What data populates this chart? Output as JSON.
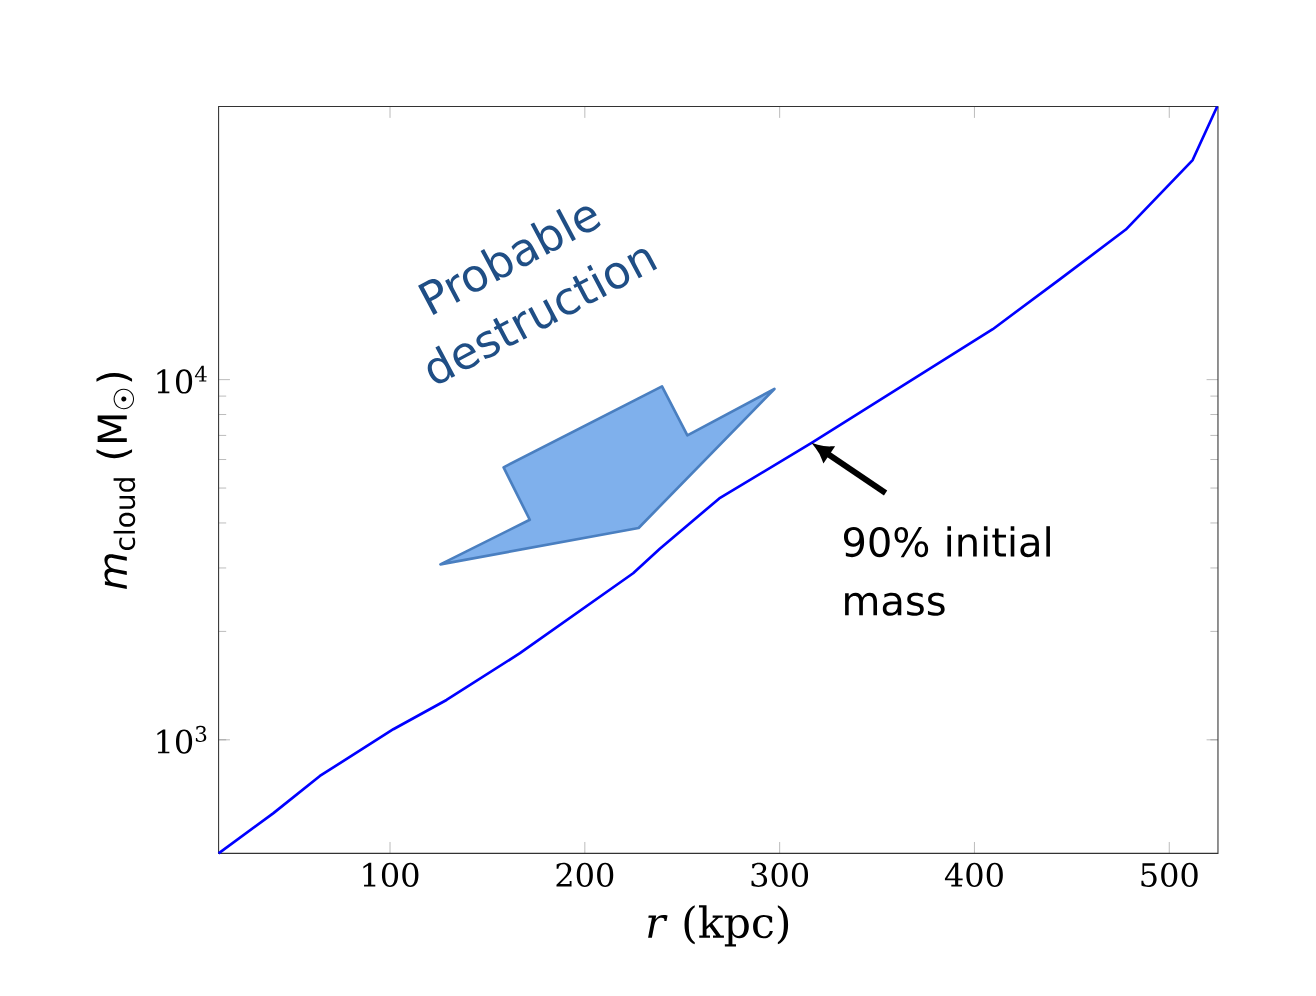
{
  "chart_data": {
    "type": "line",
    "xlabel": "*r* (kpc)",
    "ylabel": "*m*$_{cloud}$ (M$_{☉}$)",
    "x": [
      12,
      40,
      64,
      101.7,
      129,
      166.7,
      224.8,
      238.5,
      269,
      316.4,
      409.4,
      443.6,
      477.7,
      512,
      524.6
    ],
    "series": [
      {
        "color": "#0000ff",
        "values": [
          484,
          625,
          794,
          1070,
          1290,
          1740,
          2900,
          3390,
          4680,
          6670,
          13800,
          18950,
          26100,
          40700,
          57300
        ]
      }
    ],
    "xlim": [
      12,
      525
    ],
    "ylim": [
      484,
      57300
    ],
    "log": "y",
    "xticks": [
      100,
      200,
      300,
      400,
      500
    ],
    "yticks": [
      {
        "value": 1000,
        "label": "10$^{3}$"
      },
      {
        "value": 10000,
        "label": "10$^{4}$"
      }
    ],
    "annotations": [
      {
        "text": "90% initial mass",
        "x": 316.4,
        "y": 6670
      },
      "Probable destruction"
    ]
  }
}
